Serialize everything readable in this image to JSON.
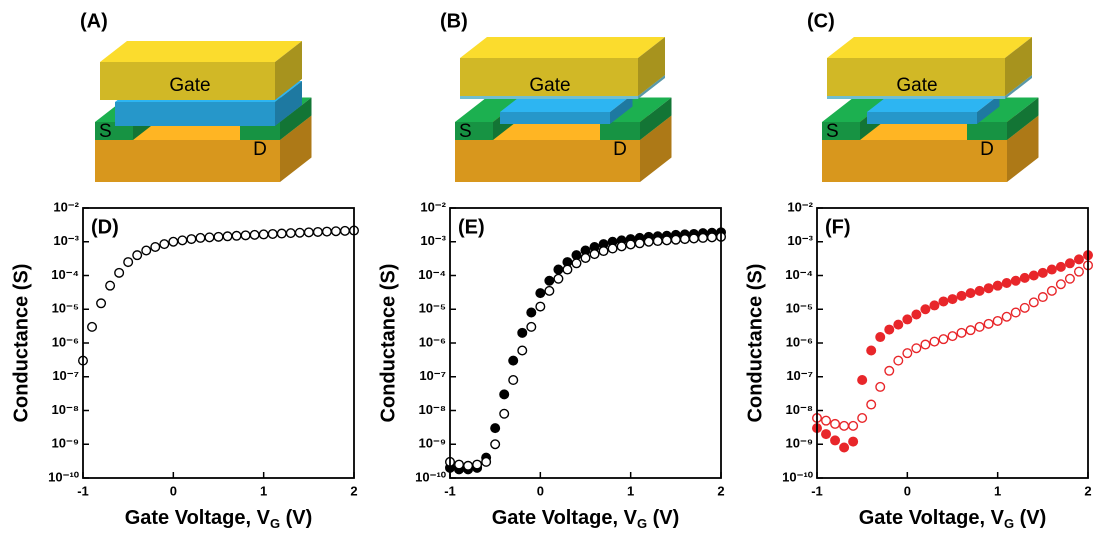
{
  "schematics": [
    {
      "label": "(A)",
      "gate": "Gate",
      "source": "S",
      "drain": "D"
    },
    {
      "label": "(B)",
      "gate": "Gate",
      "source": "S",
      "drain": "D"
    },
    {
      "label": "(C)",
      "gate": "Gate",
      "source": "S",
      "drain": "D"
    }
  ],
  "chart_data": [
    {
      "type": "scatter",
      "panel_label": "(D)",
      "y_label": "Conductance (S)",
      "x_label": [
        "Gate Voltage, V",
        "G",
        " (V)"
      ],
      "log_y": true,
      "xlim": [
        -1,
        2
      ],
      "ylim": [
        1e-10,
        0.01
      ],
      "xticks": [
        -1,
        0,
        1,
        2
      ],
      "yticks": [
        {
          "value": 1e-10,
          "label": "10⁻¹⁰"
        },
        {
          "value": 1e-09,
          "label": "10⁻⁹"
        },
        {
          "value": 1e-08,
          "label": "10⁻⁸"
        },
        {
          "value": 1e-07,
          "label": "10⁻⁷"
        },
        {
          "value": 1e-06,
          "label": "10⁻⁶"
        },
        {
          "value": 1e-05,
          "label": "10⁻⁵"
        },
        {
          "value": 0.0001,
          "label": "10⁻⁴"
        },
        {
          "value": 0.001,
          "label": "10⁻³"
        },
        {
          "value": 0.01,
          "label": "10⁻²"
        }
      ],
      "x": [
        -1,
        -0.9,
        -0.8,
        -0.7,
        -0.6,
        -0.5,
        -0.4,
        -0.3,
        -0.2,
        -0.1,
        0,
        0.1,
        0.2,
        0.3,
        0.4,
        0.5,
        0.6,
        0.7,
        0.8,
        0.9,
        1,
        1.1,
        1.2,
        1.3,
        1.4,
        1.5,
        1.6,
        1.7,
        1.8,
        1.9,
        2
      ],
      "series": [
        {
          "color": "#000000",
          "filled": false,
          "values": [
            3e-07,
            3e-06,
            1.5e-05,
            5e-05,
            0.00012,
            0.00025,
            0.0004,
            0.00055,
            0.0007,
            0.00085,
            0.001,
            0.0011,
            0.0012,
            0.0013,
            0.00135,
            0.0014,
            0.00145,
            0.0015,
            0.00155,
            0.0016,
            0.00165,
            0.0017,
            0.00175,
            0.0018,
            0.00185,
            0.0019,
            0.00195,
            0.002,
            0.00205,
            0.0021,
            0.00215
          ]
        }
      ]
    },
    {
      "type": "scatter",
      "panel_label": "(E)",
      "y_label": "Conductance (S)",
      "x_label": [
        "Gate Voltage, V",
        "G",
        " (V)"
      ],
      "log_y": true,
      "xlim": [
        -1,
        2
      ],
      "ylim": [
        1e-10,
        0.01
      ],
      "xticks": [
        -1,
        0,
        1,
        2
      ],
      "yticks": [
        {
          "value": 1e-10,
          "label": "10⁻¹⁰"
        },
        {
          "value": 1e-09,
          "label": "10⁻⁹"
        },
        {
          "value": 1e-08,
          "label": "10⁻⁸"
        },
        {
          "value": 1e-07,
          "label": "10⁻⁷"
        },
        {
          "value": 1e-06,
          "label": "10⁻⁶"
        },
        {
          "value": 1e-05,
          "label": "10⁻⁵"
        },
        {
          "value": 0.0001,
          "label": "10⁻⁴"
        },
        {
          "value": 0.001,
          "label": "10⁻³"
        },
        {
          "value": 0.01,
          "label": "10⁻²"
        }
      ],
      "x": [
        -1,
        -0.9,
        -0.8,
        -0.7,
        -0.6,
        -0.5,
        -0.4,
        -0.3,
        -0.2,
        -0.1,
        0,
        0.1,
        0.2,
        0.3,
        0.4,
        0.5,
        0.6,
        0.7,
        0.8,
        0.9,
        1,
        1.1,
        1.2,
        1.3,
        1.4,
        1.5,
        1.6,
        1.7,
        1.8,
        1.9,
        2
      ],
      "series": [
        {
          "color": "#000000",
          "filled": true,
          "values": [
            2e-10,
            1.8e-10,
            1.8e-10,
            2e-10,
            4e-10,
            3e-09,
            3e-08,
            3e-07,
            2e-06,
            8e-06,
            3e-05,
            7e-05,
            0.00015,
            0.00025,
            0.0004,
            0.00055,
            0.0007,
            0.00085,
            0.001,
            0.0011,
            0.0012,
            0.0013,
            0.0014,
            0.00145,
            0.0015,
            0.0016,
            0.00165,
            0.0017,
            0.0018,
            0.00185,
            0.0019
          ]
        },
        {
          "color": "#000000",
          "filled": false,
          "values": [
            3e-10,
            2.5e-10,
            2.3e-10,
            2.5e-10,
            3e-10,
            1e-09,
            8e-09,
            8e-08,
            6e-07,
            3e-06,
            1.2e-05,
            3.5e-05,
            8e-05,
            0.00015,
            0.00023,
            0.00033,
            0.00043,
            0.00053,
            0.00063,
            0.00073,
            0.00083,
            0.0009,
            0.001,
            0.00105,
            0.0011,
            0.00115,
            0.0012,
            0.00125,
            0.0013,
            0.00135,
            0.0014
          ]
        }
      ]
    },
    {
      "type": "scatter",
      "panel_label": "(F)",
      "y_label": "Conductance (S)",
      "x_label": [
        "Gate Voltage, V",
        "G",
        " (V)"
      ],
      "log_y": true,
      "xlim": [
        -1,
        2
      ],
      "ylim": [
        1e-10,
        0.01
      ],
      "xticks": [
        -1,
        0,
        1,
        2
      ],
      "yticks": [
        {
          "value": 1e-10,
          "label": "10⁻¹⁰"
        },
        {
          "value": 1e-09,
          "label": "10⁻⁹"
        },
        {
          "value": 1e-08,
          "label": "10⁻⁸"
        },
        {
          "value": 1e-07,
          "label": "10⁻⁷"
        },
        {
          "value": 1e-06,
          "label": "10⁻⁶"
        },
        {
          "value": 1e-05,
          "label": "10⁻⁵"
        },
        {
          "value": 0.0001,
          "label": "10⁻⁴"
        },
        {
          "value": 0.001,
          "label": "10⁻³"
        },
        {
          "value": 0.01,
          "label": "10⁻²"
        }
      ],
      "x": [
        -1,
        -0.9,
        -0.8,
        -0.7,
        -0.6,
        -0.5,
        -0.4,
        -0.3,
        -0.2,
        -0.1,
        0,
        0.1,
        0.2,
        0.3,
        0.4,
        0.5,
        0.6,
        0.7,
        0.8,
        0.9,
        1,
        1.1,
        1.2,
        1.3,
        1.4,
        1.5,
        1.6,
        1.7,
        1.8,
        1.9,
        2
      ],
      "series": [
        {
          "color": "#e8262a",
          "filled": true,
          "values": [
            3e-09,
            2e-09,
            1.3e-09,
            8e-10,
            1.2e-09,
            8e-08,
            6e-07,
            1.5e-06,
            2.5e-06,
            3.5e-06,
            5e-06,
            7e-06,
            1e-05,
            1.3e-05,
            1.7e-05,
            2e-05,
            2.5e-05,
            3e-05,
            3.5e-05,
            4.2e-05,
            5e-05,
            6e-05,
            7e-05,
            8.5e-05,
            0.0001,
            0.00012,
            0.00015,
            0.00018,
            0.00023,
            0.0003,
            0.0004
          ]
        },
        {
          "color": "#e8262a",
          "filled": false,
          "values": [
            6e-09,
            5e-09,
            4e-09,
            3.5e-09,
            3.5e-09,
            6e-09,
            1.5e-08,
            5e-08,
            1.5e-07,
            3e-07,
            5e-07,
            7e-07,
            9e-07,
            1.1e-06,
            1.3e-06,
            1.6e-06,
            2e-06,
            2.4e-06,
            3e-06,
            3.7e-06,
            4.5e-06,
            6e-06,
            8e-06,
            1.1e-05,
            1.6e-05,
            2.3e-05,
            3.5e-05,
            5.5e-05,
            8e-05,
            0.00013,
            0.0002
          ]
        }
      ]
    }
  ]
}
